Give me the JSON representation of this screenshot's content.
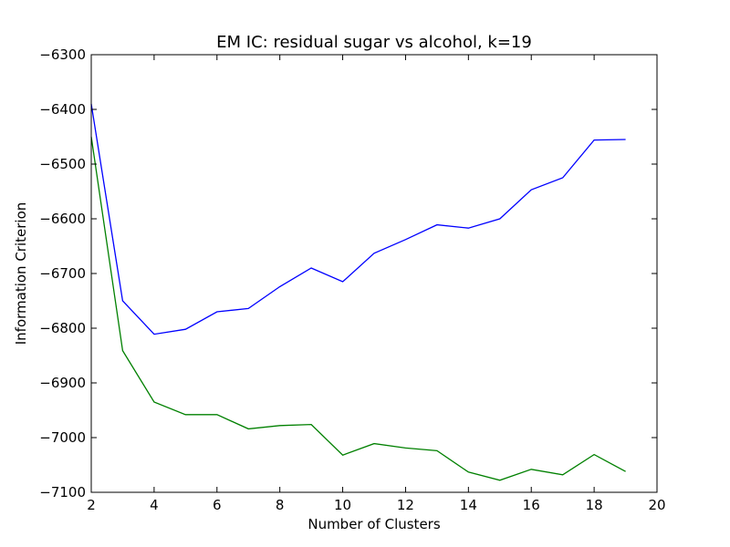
{
  "chart_data": {
    "type": "line",
    "title": "EM IC: residual sugar vs alcohol, k=19",
    "xlabel": "Number of Clusters",
    "ylabel": "Information Criterion",
    "xlim": [
      2,
      20
    ],
    "ylim": [
      -7100,
      -6300
    ],
    "xticks": [
      2,
      4,
      6,
      8,
      10,
      12,
      14,
      16,
      18,
      20
    ],
    "yticks": [
      -7100,
      -7000,
      -6900,
      -6800,
      -6700,
      -6600,
      -6500,
      -6400,
      -6300
    ],
    "xtick_labels": [
      "2",
      "4",
      "6",
      "8",
      "10",
      "12",
      "14",
      "16",
      "18",
      "20"
    ],
    "ytick_labels": [
      "−7100",
      "−7000",
      "−6900",
      "−6800",
      "−6700",
      "−6600",
      "−6500",
      "−6400",
      "−6300"
    ],
    "grid": false,
    "x": [
      2,
      3,
      4,
      5,
      6,
      7,
      8,
      9,
      10,
      11,
      12,
      13,
      14,
      15,
      16,
      17,
      18,
      19
    ],
    "series": [
      {
        "color": "#0000ff",
        "values": [
          -6390,
          -6750,
          -6811,
          -6802,
          -6770,
          -6764,
          -6724,
          -6690,
          -6715,
          -6663,
          -6638,
          -6611,
          -6617,
          -6600,
          -6547,
          -6525,
          -6456,
          -6455
        ]
      },
      {
        "color": "#008000",
        "values": [
          -6450,
          -6841,
          -6935,
          -6958,
          -6958,
          -6984,
          -6978,
          -6976,
          -7032,
          -7011,
          -7019,
          -7024,
          -7063,
          -7078,
          -7058,
          -7068,
          -7031,
          -7062
        ]
      }
    ]
  }
}
